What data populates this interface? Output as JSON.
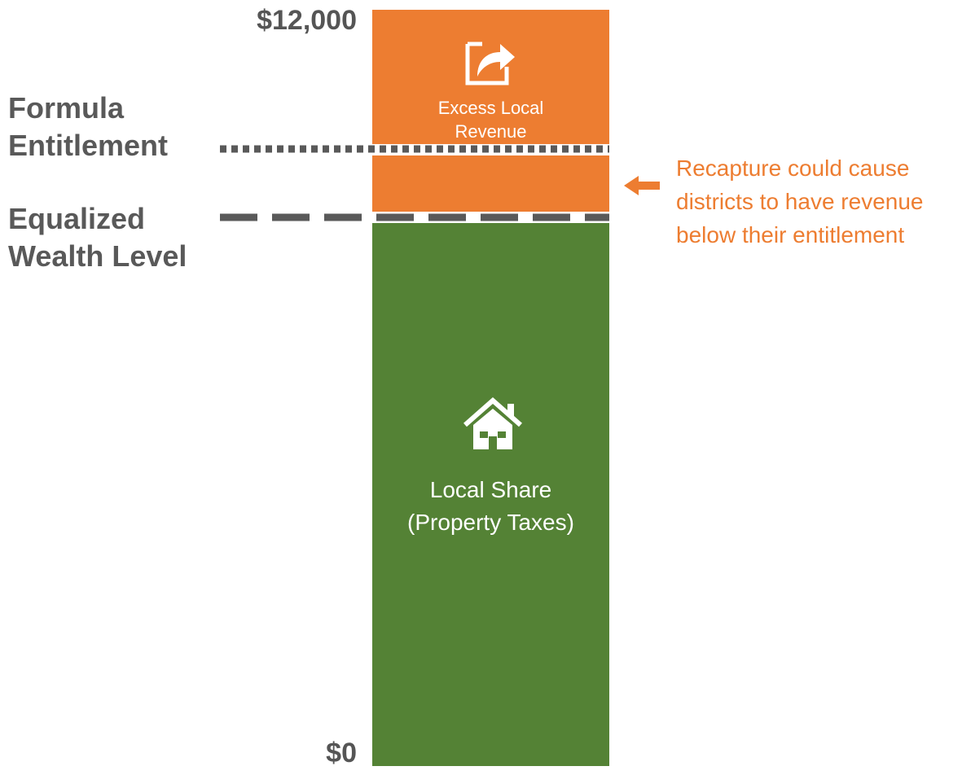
{
  "chart_data": {
    "type": "bar",
    "stacked": true,
    "ylim": [
      0,
      12000
    ],
    "yticks": [
      "$12,000",
      "$0"
    ],
    "segments": [
      {
        "name": "Local Share\n(Property Taxes)",
        "color": "#548235",
        "icon": "house-icon"
      },
      {
        "name": "Excess Local\nRevenue",
        "color": "#ED7D31",
        "icon": "share-arrow-icon"
      }
    ],
    "reference_lines": [
      {
        "label": "Formula\nEntitlement",
        "style": "dotted",
        "color": "#595959"
      },
      {
        "label": "Equalized\nWealth Level",
        "style": "dashed",
        "color": "#595959"
      }
    ],
    "annotation": {
      "text": "Recapture could cause\ndistricts to have revenue\nbelow their entitlement",
      "color": "#ED7D31",
      "arrow": "left-arrow-icon"
    }
  },
  "colors": {
    "background": "#ffffff",
    "text_gray": "#595959"
  }
}
